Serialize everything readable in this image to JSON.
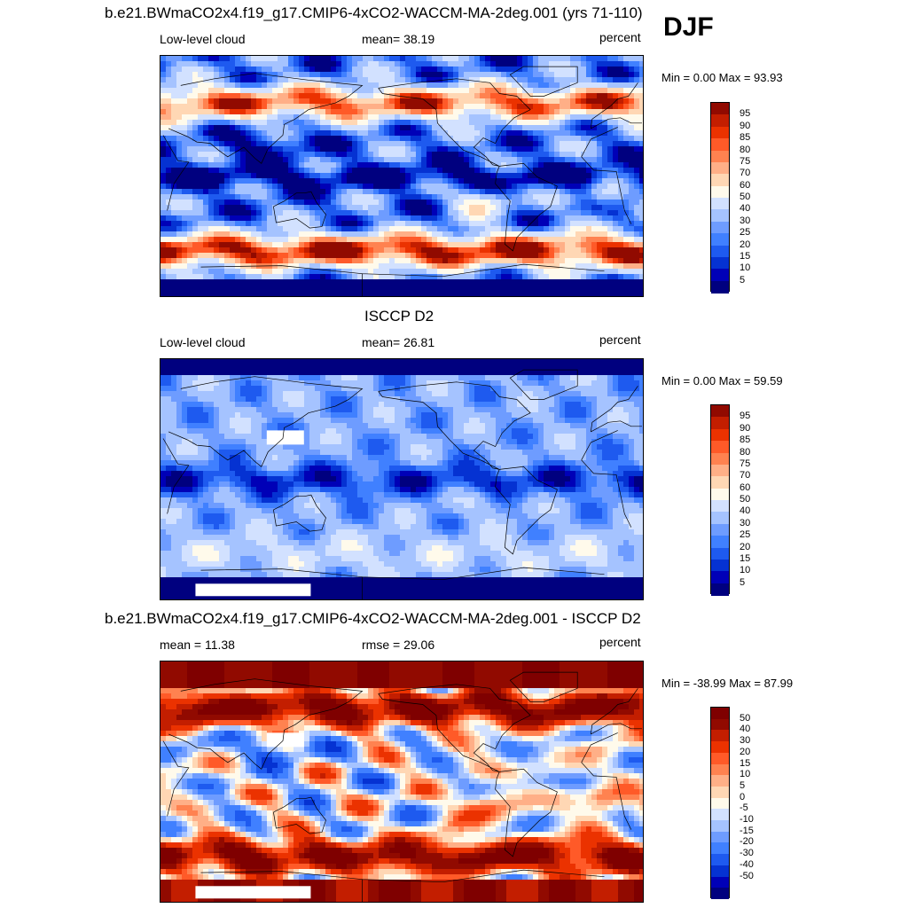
{
  "season_label": "DJF",
  "colors": {
    "abs_scale": [
      "#00007f",
      "#0000b7",
      "#0532d2",
      "#1e5aef",
      "#4080ff",
      "#6e9cff",
      "#a5c3ff",
      "#d2e1ff",
      "#fffaeb",
      "#ffd7b4",
      "#ffaf87",
      "#ff8250",
      "#ff5a28",
      "#eb3200",
      "#c31e00",
      "#910a00"
    ],
    "diff_scale": [
      "#00007f",
      "#0000b7",
      "#0532d2",
      "#1e5aef",
      "#4080ff",
      "#6e9cff",
      "#a5c3ff",
      "#d2e1ff",
      "#fffaeb",
      "#ffd7b4",
      "#ffaf87",
      "#ff8250",
      "#ff5a28",
      "#eb3200",
      "#c31e00",
      "#910a00",
      "#7f0000"
    ],
    "missing": "#ffffff",
    "coast": "#000000"
  },
  "chart_data": [
    {
      "type": "heatmap",
      "title": "b.e21.BWmaCO2x4.f19_g17.CMIP6-4xCO2-WACCM-MA-2deg.001 (yrs 71-110)",
      "left_label": "Low-level cloud",
      "center_label": "mean=  38.19",
      "units": "percent",
      "minmax": "Min =   0.00 Max =  93.93",
      "field": "model",
      "colorbar_levels": [
        "95",
        "90",
        "85",
        "80",
        "75",
        "70",
        "60",
        "50",
        "40",
        "30",
        "25",
        "20",
        "15",
        "10",
        "5"
      ]
    },
    {
      "type": "heatmap",
      "title": "ISCCP D2",
      "left_label": "Low-level cloud",
      "center_label": "mean=  26.81",
      "units": "percent",
      "minmax": "Min =   0.00 Max =  59.59",
      "field": "obs",
      "colorbar_levels": [
        "95",
        "90",
        "85",
        "80",
        "75",
        "70",
        "60",
        "50",
        "40",
        "30",
        "25",
        "20",
        "15",
        "10",
        "5"
      ]
    },
    {
      "type": "heatmap",
      "title": "b.e21.BWmaCO2x4.f19_g17.CMIP6-4xCO2-WACCM-MA-2deg.001 - ISCCP D2",
      "left_label": "mean =  11.38",
      "center_label": "rmse =  29.06",
      "units": "percent",
      "minmax": "Min = -38.99 Max =  87.99",
      "field": "diff",
      "colorbar_levels": [
        "50",
        "40",
        "30",
        "20",
        "15",
        "10",
        "5",
        "0",
        "-5",
        "-10",
        "-15",
        "-20",
        "-30",
        "-40",
        "-50"
      ]
    }
  ]
}
